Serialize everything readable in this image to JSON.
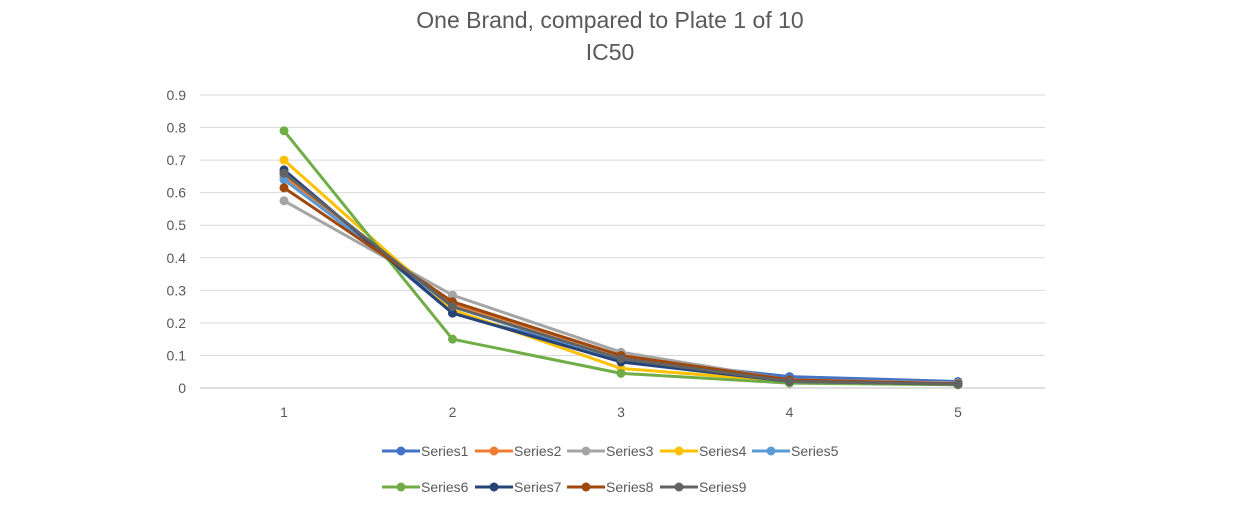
{
  "chart_data": {
    "type": "line",
    "title": "One Brand, compared to Plate 1 of 10",
    "subtitle": "IC50",
    "xlabel": "",
    "ylabel": "",
    "categories": [
      "1",
      "2",
      "3",
      "4",
      "5"
    ],
    "ylim": [
      0,
      0.9
    ],
    "yticks": [
      0,
      0.1,
      0.2,
      0.3,
      0.4,
      0.5,
      0.6,
      0.7,
      0.8,
      0.9
    ],
    "grid": "horizontal",
    "legend_position": "bottom",
    "series": [
      {
        "name": "Series1",
        "color": "#4472C4",
        "values": [
          0.66,
          0.23,
          0.09,
          0.035,
          0.02
        ]
      },
      {
        "name": "Series2",
        "color": "#ED7D31",
        "values": [
          0.65,
          0.26,
          0.1,
          0.025,
          0.015
        ]
      },
      {
        "name": "Series3",
        "color": "#A5A5A5",
        "values": [
          0.575,
          0.285,
          0.11,
          0.025,
          0.015
        ]
      },
      {
        "name": "Series4",
        "color": "#FFC000",
        "values": [
          0.7,
          0.24,
          0.06,
          0.02,
          0.01
        ]
      },
      {
        "name": "Series5",
        "color": "#5B9BD5",
        "values": [
          0.64,
          0.25,
          0.085,
          0.02,
          0.01
        ]
      },
      {
        "name": "Series6",
        "color": "#70AD47",
        "values": [
          0.79,
          0.15,
          0.045,
          0.015,
          0.01
        ]
      },
      {
        "name": "Series7",
        "color": "#264478",
        "values": [
          0.67,
          0.23,
          0.08,
          0.02,
          0.012
        ]
      },
      {
        "name": "Series8",
        "color": "#9E480E",
        "values": [
          0.615,
          0.265,
          0.1,
          0.025,
          0.013
        ]
      },
      {
        "name": "Series9",
        "color": "#636363",
        "values": [
          0.66,
          0.25,
          0.09,
          0.02,
          0.012
        ]
      }
    ]
  }
}
